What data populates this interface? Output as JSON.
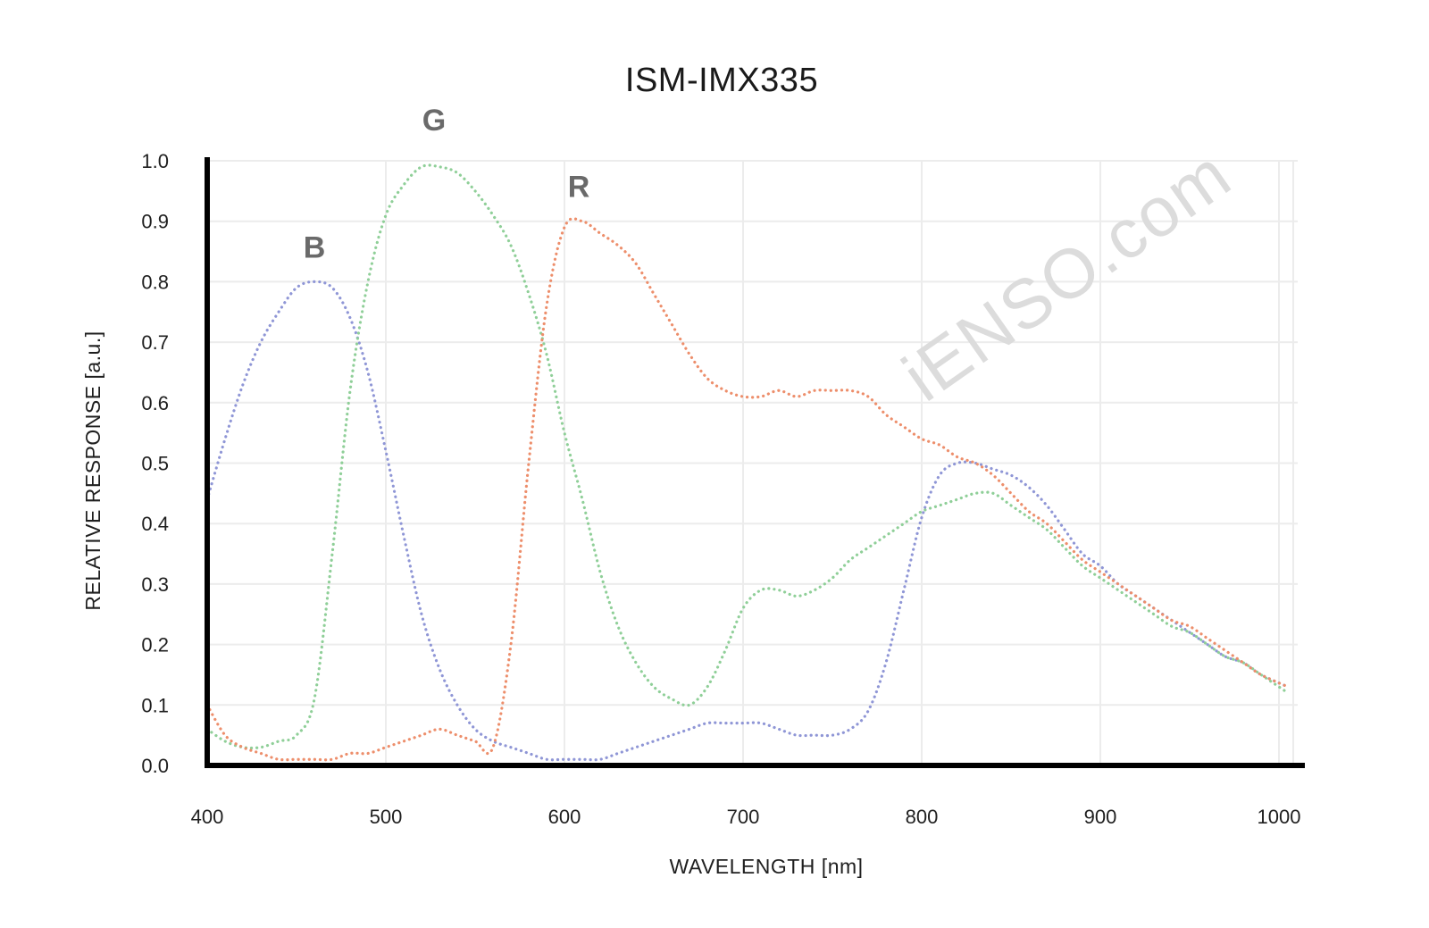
{
  "chart_data": {
    "type": "line",
    "title": "ISM-IMX335",
    "xlabel": "WAVELENGTH [nm]",
    "ylabel": "RELATIVE RESPONSE [a.u.]",
    "xlim": [
      400,
      1010
    ],
    "ylim": [
      0.0,
      1.0
    ],
    "xticks": [
      400,
      500,
      600,
      700,
      800,
      900,
      1000
    ],
    "yticks": [
      "0.0",
      "0.1",
      "0.2",
      "0.3",
      "0.4",
      "0.5",
      "0.6",
      "0.7",
      "0.8",
      "0.9",
      "1.0"
    ],
    "grid": true,
    "legend": "none",
    "watermark": "iENSO.com",
    "series": [
      {
        "name": "B",
        "color": "#8f96d6",
        "x": [
          400,
          410,
          420,
          430,
          440,
          450,
          460,
          470,
          480,
          490,
          500,
          510,
          520,
          530,
          540,
          550,
          560,
          570,
          580,
          590,
          600,
          610,
          620,
          630,
          640,
          650,
          660,
          670,
          680,
          690,
          700,
          710,
          720,
          730,
          740,
          750,
          760,
          770,
          780,
          790,
          800,
          810,
          820,
          830,
          840,
          850,
          860,
          870,
          880,
          890,
          900,
          910,
          920,
          930,
          940,
          950,
          960,
          970,
          980,
          990,
          1005
        ],
        "values": [
          0.44,
          0.54,
          0.63,
          0.7,
          0.75,
          0.79,
          0.8,
          0.79,
          0.74,
          0.65,
          0.52,
          0.38,
          0.25,
          0.16,
          0.1,
          0.06,
          0.04,
          0.03,
          0.02,
          0.01,
          0.01,
          0.01,
          0.01,
          0.02,
          0.03,
          0.04,
          0.05,
          0.06,
          0.07,
          0.07,
          0.07,
          0.07,
          0.06,
          0.05,
          0.05,
          0.05,
          0.06,
          0.09,
          0.17,
          0.29,
          0.41,
          0.48,
          0.5,
          0.5,
          0.49,
          0.48,
          0.46,
          0.43,
          0.39,
          0.35,
          0.33,
          0.3,
          0.28,
          0.26,
          0.24,
          0.22,
          0.2,
          0.18,
          0.17,
          0.15,
          0.13
        ]
      },
      {
        "name": "G",
        "color": "#8fcf98",
        "x": [
          400,
          410,
          420,
          430,
          440,
          450,
          460,
          470,
          480,
          490,
          500,
          510,
          520,
          530,
          540,
          550,
          560,
          570,
          580,
          590,
          600,
          610,
          620,
          630,
          640,
          650,
          660,
          670,
          680,
          690,
          700,
          710,
          720,
          730,
          740,
          750,
          760,
          770,
          780,
          790,
          800,
          810,
          820,
          830,
          840,
          850,
          860,
          870,
          880,
          890,
          900,
          910,
          920,
          930,
          940,
          950,
          960,
          970,
          980,
          990,
          1005
        ],
        "values": [
          0.06,
          0.04,
          0.03,
          0.03,
          0.04,
          0.05,
          0.11,
          0.35,
          0.62,
          0.8,
          0.91,
          0.96,
          0.99,
          0.99,
          0.98,
          0.95,
          0.91,
          0.86,
          0.78,
          0.68,
          0.55,
          0.44,
          0.32,
          0.23,
          0.17,
          0.13,
          0.11,
          0.1,
          0.13,
          0.19,
          0.26,
          0.29,
          0.29,
          0.28,
          0.29,
          0.31,
          0.34,
          0.36,
          0.38,
          0.4,
          0.42,
          0.43,
          0.44,
          0.45,
          0.45,
          0.43,
          0.41,
          0.39,
          0.36,
          0.33,
          0.31,
          0.29,
          0.27,
          0.25,
          0.23,
          0.22,
          0.2,
          0.18,
          0.17,
          0.15,
          0.12
        ]
      },
      {
        "name": "R",
        "color": "#ed8e6b",
        "x": [
          400,
          410,
          420,
          430,
          440,
          450,
          460,
          470,
          480,
          490,
          500,
          510,
          520,
          530,
          540,
          550,
          560,
          570,
          580,
          590,
          600,
          610,
          620,
          630,
          640,
          650,
          660,
          670,
          680,
          690,
          700,
          710,
          720,
          730,
          740,
          750,
          760,
          770,
          780,
          790,
          800,
          810,
          820,
          830,
          840,
          850,
          860,
          870,
          880,
          890,
          900,
          910,
          920,
          930,
          940,
          950,
          960,
          970,
          980,
          990,
          1005
        ],
        "values": [
          0.1,
          0.05,
          0.03,
          0.02,
          0.01,
          0.01,
          0.01,
          0.01,
          0.02,
          0.02,
          0.03,
          0.04,
          0.05,
          0.06,
          0.05,
          0.04,
          0.03,
          0.2,
          0.5,
          0.76,
          0.89,
          0.9,
          0.88,
          0.86,
          0.83,
          0.78,
          0.73,
          0.68,
          0.64,
          0.62,
          0.61,
          0.61,
          0.62,
          0.61,
          0.62,
          0.62,
          0.62,
          0.61,
          0.58,
          0.56,
          0.54,
          0.53,
          0.51,
          0.5,
          0.48,
          0.45,
          0.42,
          0.4,
          0.37,
          0.34,
          0.32,
          0.3,
          0.28,
          0.26,
          0.24,
          0.23,
          0.21,
          0.19,
          0.17,
          0.15,
          0.13
        ]
      }
    ],
    "series_label_anchor": [
      {
        "name": "B",
        "x": 460,
        "y": 0.84
      },
      {
        "name": "G",
        "x": 527,
        "y": 1.05
      },
      {
        "name": "R",
        "x": 608,
        "y": 0.94
      }
    ]
  }
}
